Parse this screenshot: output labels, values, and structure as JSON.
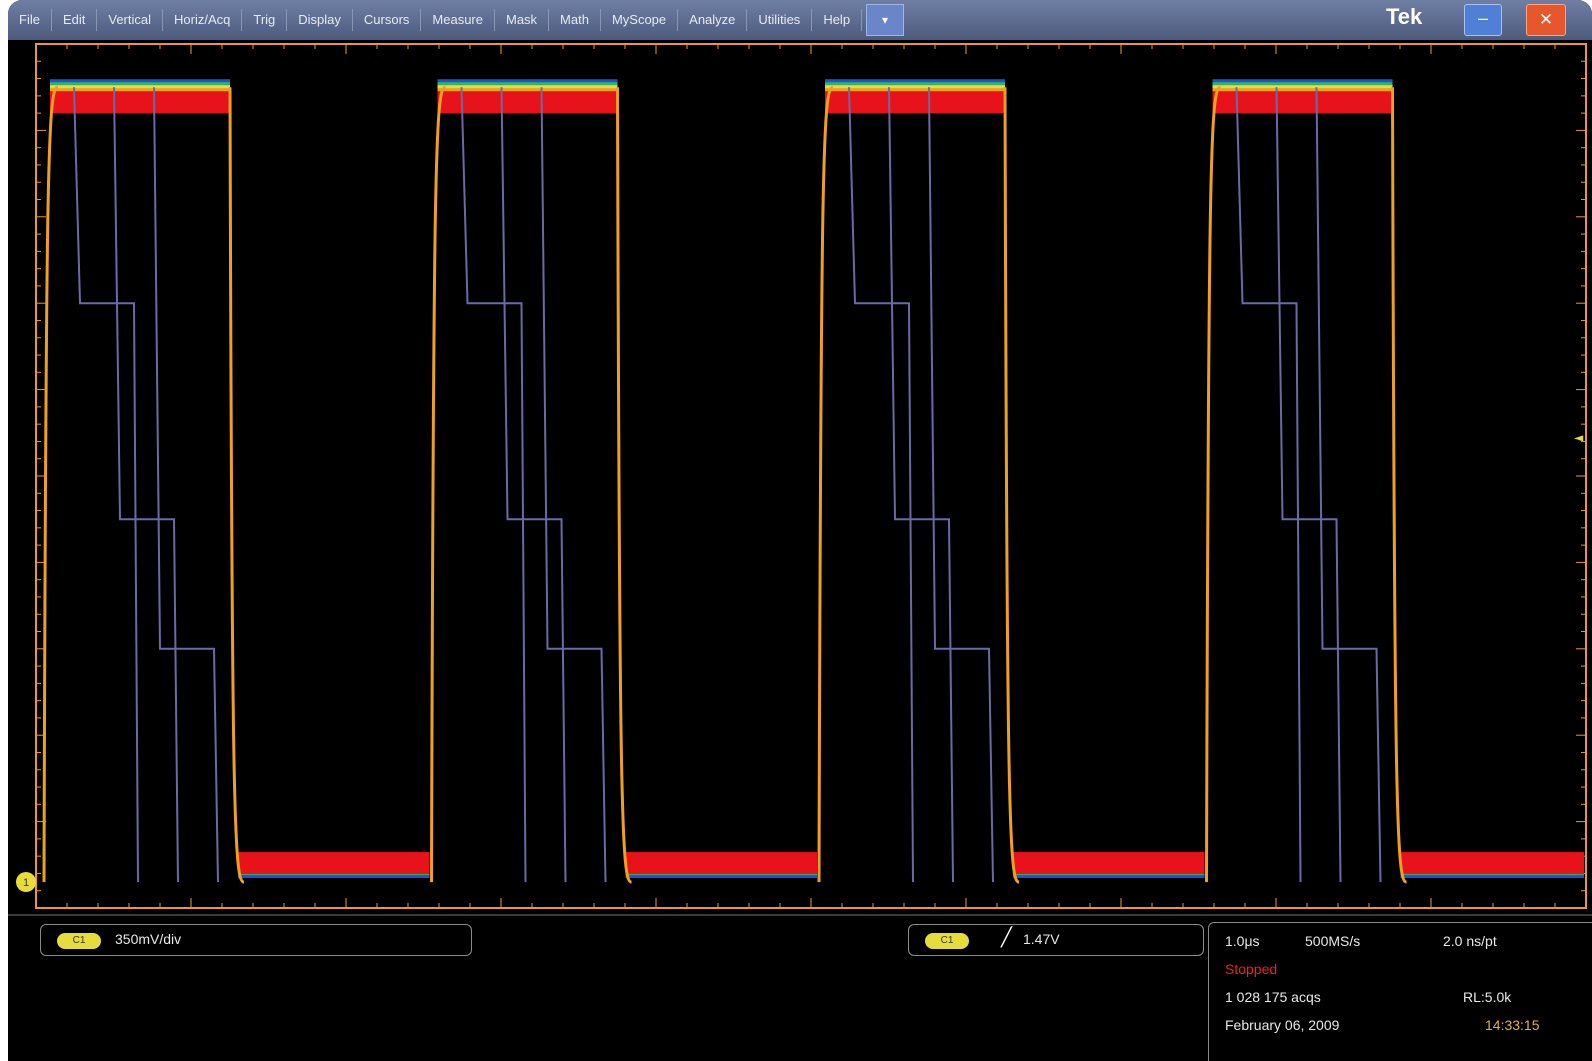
{
  "menubar": {
    "items": [
      "File",
      "Edit",
      "Vertical",
      "Horiz/Acq",
      "Trig",
      "Display",
      "Cursors",
      "Measure",
      "Mask",
      "Math",
      "MyScope",
      "Analyze",
      "Utilities",
      "Help"
    ],
    "more_label": "▾",
    "brand": "Tek",
    "minimize_label": "–",
    "close_label": "✕"
  },
  "display": {
    "grid": true,
    "x_divisions": 10,
    "y_divisions": 10,
    "ch1_marker": "1",
    "trigger_marker": "◄",
    "colors": {
      "background": "#000000",
      "graticule": "#e89a2e",
      "trace_bright": "#e8121a",
      "trace_dim": "#6a6aa8"
    },
    "persistence_trace": {
      "description_levels": [
        "high",
        "low"
      ],
      "period_divisions": 2.5,
      "duty_high_fraction": 0.48
    }
  },
  "readouts": {
    "ch1": {
      "badge": "C1",
      "scale": "350mV/div"
    },
    "trigger": {
      "badge": "C1",
      "slope": "╱",
      "level": "1.47V"
    },
    "status": {
      "timebase": "1.0μs",
      "sample_rate": "500MS/s",
      "pts_per_div": "2.0 ns/pt",
      "state": "Stopped",
      "acqs": "1 028 175 acqs",
      "record_length": "RL:5.0k",
      "date": "February 06, 2009",
      "time": "14:33:15",
      "state_color": "#e8242a",
      "time_color": "#e8b23a"
    }
  }
}
